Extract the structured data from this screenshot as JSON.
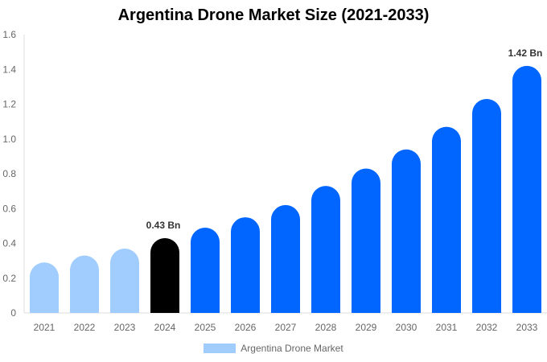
{
  "chart_data": {
    "type": "bar",
    "title": "Argentina Drone Market Size (2021-2033)",
    "xlabel": "",
    "ylabel": "",
    "ylim": [
      0,
      1.6
    ],
    "yticks": [
      "0",
      "0.2",
      "0.4",
      "0.6",
      "0.8",
      "1.0",
      "1.2",
      "1.4",
      "1.6"
    ],
    "categories": [
      "2021",
      "2022",
      "2023",
      "2024",
      "2025",
      "2026",
      "2027",
      "2028",
      "2029",
      "2030",
      "2031",
      "2032",
      "2033"
    ],
    "series": [
      {
        "name": "Argentina Drone Market",
        "values": [
          0.29,
          0.33,
          0.37,
          0.43,
          0.49,
          0.55,
          0.62,
          0.73,
          0.83,
          0.94,
          1.07,
          1.23,
          1.42
        ]
      }
    ],
    "bar_colors": {
      "historical": "#a0cdfd",
      "base_year": "#000000",
      "forecast": "#0066ff"
    },
    "data_labels": [
      {
        "category": "2024",
        "text": "0.43 Bn"
      },
      {
        "category": "2033",
        "text": "1.42 Bn"
      }
    ],
    "legend_position": "bottom",
    "grid": false
  }
}
